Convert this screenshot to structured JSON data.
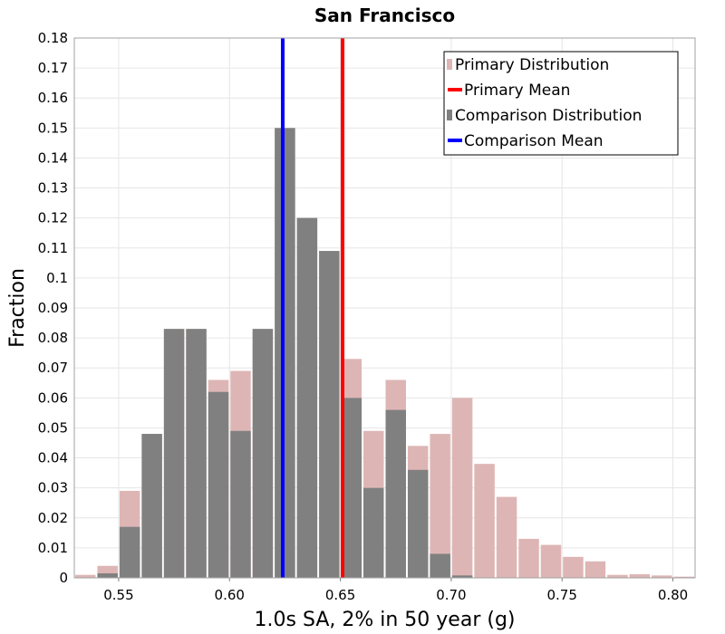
{
  "chart_data": {
    "type": "bar",
    "title": "San Francisco",
    "xlabel": "1.0s SA, 2% in 50 year (g)",
    "ylabel": "Fraction",
    "xlim": [
      0.53,
      0.81
    ],
    "ylim": [
      0,
      0.18
    ],
    "bin_width": 0.01,
    "x_ticks": [
      "0.55",
      "0.60",
      "0.65",
      "0.70",
      "0.75",
      "0.80"
    ],
    "y_ticks": [
      "0",
      "0.01",
      "0.02",
      "0.03",
      "0.04",
      "0.05",
      "0.06",
      "0.07",
      "0.08",
      "0.09",
      "0.1",
      "0.11",
      "0.12",
      "0.13",
      "0.14",
      "0.15",
      "0.16",
      "0.17",
      "0.18"
    ],
    "grid": true,
    "legend_position": "top-right",
    "bin_centers": [
      0.535,
      0.545,
      0.555,
      0.565,
      0.575,
      0.585,
      0.595,
      0.605,
      0.615,
      0.625,
      0.635,
      0.645,
      0.655,
      0.665,
      0.675,
      0.685,
      0.695,
      0.705,
      0.715,
      0.725,
      0.735,
      0.745,
      0.755,
      0.765,
      0.775,
      0.785,
      0.795,
      0.805
    ],
    "series": [
      {
        "name": "Primary Distribution",
        "kind": "histogram",
        "color": "#deb5b5",
        "values": [
          0.001,
          0.004,
          0.029,
          0.048,
          0.083,
          0.083,
          0.066,
          0.069,
          0.083,
          0.15,
          0.12,
          0.109,
          0.073,
          0.049,
          0.066,
          0.044,
          0.048,
          0.06,
          0.038,
          0.027,
          0.013,
          0.011,
          0.007,
          0.0055,
          0.001,
          0.0012,
          0.0008,
          0.0004
        ]
      },
      {
        "name": "Comparison Distribution",
        "kind": "histogram",
        "color": "#808080",
        "values": [
          0,
          0.0015,
          0.017,
          0.048,
          0.083,
          0.083,
          0.062,
          0.049,
          0.083,
          0.15,
          0.12,
          0.109,
          0.06,
          0.03,
          0.056,
          0.036,
          0.008,
          0.0008,
          0,
          0,
          0,
          0,
          0,
          0,
          0,
          0,
          0,
          0
        ]
      },
      {
        "name": "Primary Mean",
        "kind": "vline",
        "color": "#ff0000",
        "x": 0.651
      },
      {
        "name": "Comparison Mean",
        "kind": "vline",
        "color": "#0000ff",
        "x": 0.624
      }
    ]
  }
}
